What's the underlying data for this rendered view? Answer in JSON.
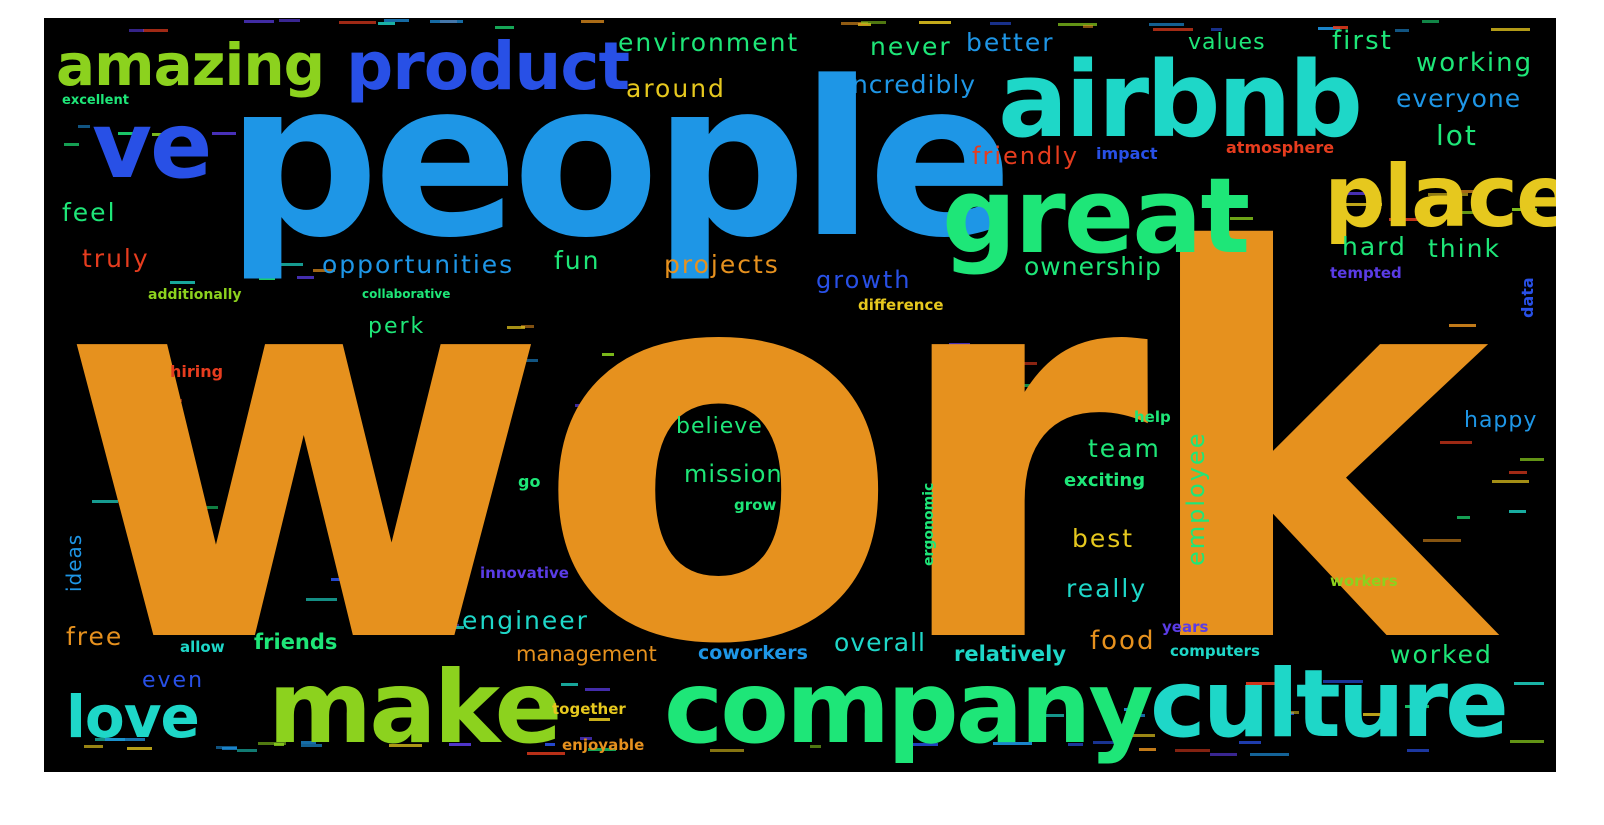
{
  "wordcloud": {
    "colors": {
      "background": "#000000",
      "orange": "#e6911e",
      "blue": "#1e96e6",
      "teal": "#1ed7c8",
      "green": "#1ee678",
      "lime": "#8cd21e",
      "yellow": "#e6c81e",
      "red": "#e63c1e",
      "indigo": "#2850e6",
      "violet": "#5a3ce6"
    },
    "words": {
      "work": "work",
      "people": "people",
      "airbnb": "airbnb",
      "great": "great",
      "place": "place",
      "company": "company",
      "culture": "culture",
      "make": "make",
      "product": "product",
      "amazing": "amazing",
      "ve": "ve",
      "love": "love",
      "environment": "environment",
      "around": "around",
      "never": "never",
      "better": "better",
      "incredibly": "incredibly",
      "values": "values",
      "first": "first",
      "working": "working",
      "everyone": "everyone",
      "lot": "lot",
      "friendly": "friendly",
      "impact": "impact",
      "atmosphere": "atmosphere",
      "excellent": "excellent",
      "feel": "feel",
      "truly": "truly",
      "opportunities": "opportunities",
      "fun": "fun",
      "projects": "projects",
      "growth": "growth",
      "ownership": "ownership",
      "hard": "hard",
      "think": "think",
      "tempted": "tempted",
      "additionally": "additionally",
      "collaborative": "collaborative",
      "difference": "difference",
      "perk": "perk",
      "hiring": "hiring",
      "data": "data",
      "believe": "believe",
      "mission": "mission",
      "team": "team",
      "employee": "employee",
      "help": "help",
      "happy": "happy",
      "exciting": "exciting",
      "go": "go",
      "grow": "grow",
      "ideas": "ideas",
      "ergonomic": "ergonomic",
      "best": "best",
      "innovative": "innovative",
      "really": "really",
      "engineer": "engineer",
      "workers": "workers",
      "free": "free",
      "friends": "friends",
      "allow": "allow",
      "overall": "overall",
      "food": "food",
      "relatively": "relatively",
      "years": "years",
      "computers": "computers",
      "management": "management",
      "coworkers": "coworkers",
      "worked": "worked",
      "even": "even",
      "together": "together",
      "enjoyable": "enjoyable"
    }
  }
}
